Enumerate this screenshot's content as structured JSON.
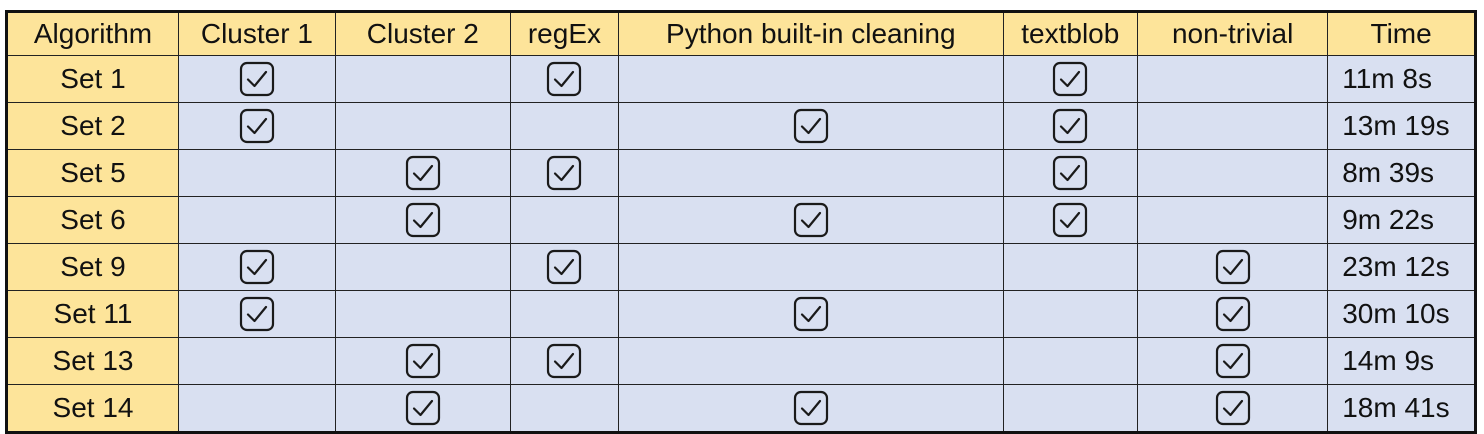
{
  "table": {
    "headers": [
      "Algorithm",
      "Cluster 1",
      "Cluster 2",
      "regEx",
      "Python built-in cleaning",
      "textblob",
      "non-trivial",
      "Time"
    ],
    "rows": [
      {
        "name": "Set 1",
        "checks": [
          true,
          false,
          true,
          false,
          true,
          false
        ],
        "time": "11m 8s"
      },
      {
        "name": "Set 2",
        "checks": [
          true,
          false,
          false,
          true,
          true,
          false
        ],
        "time": "13m 19s"
      },
      {
        "name": "Set 5",
        "checks": [
          false,
          true,
          true,
          false,
          true,
          false
        ],
        "time": "8m 39s"
      },
      {
        "name": "Set 6",
        "checks": [
          false,
          true,
          false,
          true,
          true,
          false
        ],
        "time": "9m 22s"
      },
      {
        "name": "Set 9",
        "checks": [
          true,
          false,
          true,
          false,
          false,
          true
        ],
        "time": "23m 12s"
      },
      {
        "name": "Set 11",
        "checks": [
          true,
          false,
          false,
          true,
          false,
          true
        ],
        "time": "30m 10s"
      },
      {
        "name": "Set 13",
        "checks": [
          false,
          true,
          true,
          false,
          false,
          true
        ],
        "time": "14m 9s"
      },
      {
        "name": "Set 14",
        "checks": [
          false,
          true,
          false,
          true,
          false,
          true
        ],
        "time": "18m 41s"
      }
    ]
  },
  "icons": {
    "check": "checkbox-checked-icon"
  },
  "colors": {
    "header_bg": "#fde49a",
    "cell_bg": "#d9e0f1",
    "border": "#222222"
  }
}
